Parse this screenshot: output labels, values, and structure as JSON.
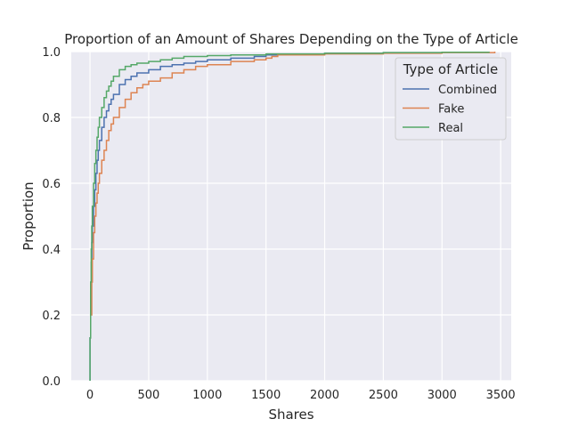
{
  "chart_data": {
    "type": "line",
    "title": "Proportion of an Amount of Shares Depending on the Type of Article",
    "xlabel": "Shares",
    "ylabel": "Proportion",
    "xlim": [
      -160,
      3590
    ],
    "ylim": [
      0.0,
      1.0
    ],
    "xticks": [
      0,
      500,
      1000,
      1500,
      2000,
      2500,
      3000,
      3500
    ],
    "yticks": [
      0.0,
      0.2,
      0.4,
      0.6,
      0.8,
      1.0
    ],
    "xtick_labels": [
      "0",
      "500",
      "1000",
      "1500",
      "2000",
      "2500",
      "3000",
      "3500"
    ],
    "ytick_labels": [
      "0.0",
      "0.2",
      "0.4",
      "0.6",
      "0.8",
      "1.0"
    ],
    "grid": true,
    "background": "#eaeaf2",
    "legend": {
      "title": "Type of Article",
      "placement": "top-right",
      "entries": [
        "Combined",
        "Fake",
        "Real"
      ]
    },
    "series": [
      {
        "name": "Combined",
        "color": "#4c72b0",
        "x": [
          0,
          0,
          5,
          10,
          15,
          20,
          30,
          40,
          50,
          60,
          70,
          80,
          100,
          120,
          140,
          160,
          180,
          200,
          250,
          300,
          350,
          400,
          500,
          600,
          700,
          800,
          900,
          1000,
          1200,
          1400,
          1500,
          1600,
          2000,
          2500,
          3000,
          3400
        ],
        "y": [
          0.0,
          0.13,
          0.27,
          0.36,
          0.42,
          0.47,
          0.53,
          0.58,
          0.63,
          0.67,
          0.7,
          0.73,
          0.77,
          0.8,
          0.82,
          0.84,
          0.855,
          0.87,
          0.9,
          0.915,
          0.925,
          0.935,
          0.945,
          0.955,
          0.96,
          0.965,
          0.97,
          0.975,
          0.98,
          0.985,
          0.99,
          0.992,
          0.995,
          0.997,
          0.998,
          1.0
        ]
      },
      {
        "name": "Fake",
        "color": "#dd8452",
        "x": [
          10,
          15,
          20,
          30,
          40,
          50,
          60,
          70,
          80,
          100,
          120,
          140,
          160,
          180,
          200,
          250,
          300,
          350,
          400,
          450,
          500,
          600,
          700,
          800,
          900,
          1000,
          1200,
          1400,
          1500,
          1550,
          1600,
          2000,
          2500,
          3000,
          3450
        ],
        "y": [
          0.2,
          0.3,
          0.37,
          0.45,
          0.5,
          0.54,
          0.57,
          0.6,
          0.63,
          0.67,
          0.7,
          0.73,
          0.76,
          0.78,
          0.8,
          0.83,
          0.855,
          0.875,
          0.89,
          0.9,
          0.91,
          0.92,
          0.935,
          0.945,
          0.955,
          0.96,
          0.97,
          0.975,
          0.98,
          0.985,
          0.99,
          0.993,
          0.995,
          0.997,
          1.0
        ]
      },
      {
        "name": "Real",
        "color": "#55a868",
        "x": [
          0,
          0,
          5,
          10,
          15,
          20,
          30,
          40,
          50,
          60,
          70,
          80,
          100,
          120,
          140,
          160,
          180,
          200,
          250,
          300,
          350,
          400,
          500,
          600,
          700,
          800,
          1000,
          1200,
          1500,
          2000,
          2500,
          3000,
          3400
        ],
        "y": [
          0.0,
          0.13,
          0.3,
          0.4,
          0.47,
          0.53,
          0.6,
          0.66,
          0.7,
          0.74,
          0.77,
          0.8,
          0.83,
          0.86,
          0.88,
          0.895,
          0.91,
          0.925,
          0.945,
          0.955,
          0.96,
          0.965,
          0.97,
          0.975,
          0.98,
          0.985,
          0.988,
          0.99,
          0.993,
          0.995,
          0.997,
          0.998,
          1.0
        ]
      }
    ]
  }
}
